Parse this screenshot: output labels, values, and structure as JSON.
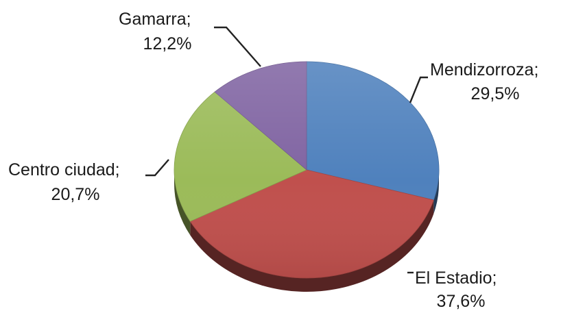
{
  "chart_data": {
    "type": "pie",
    "title": "",
    "series": [
      {
        "categories": [
          "Mendizorroza",
          "El Estadio",
          "Centro ciudad",
          "Gamarra"
        ],
        "values": [
          29.5,
          37.6,
          20.7,
          12.2
        ]
      }
    ],
    "data_labels": [
      {
        "name": "Mendizorroza;",
        "value": "29,5%"
      },
      {
        "name": "El Estadio;",
        "value": "37,6%"
      },
      {
        "name": "Centro ciudad;",
        "value": "20,7%"
      },
      {
        "name": "Gamarra;",
        "value": "12,2%"
      }
    ],
    "colors": [
      "#4f81bd",
      "#c0504d",
      "#9bbb59",
      "#8064a2"
    ],
    "legend": "none",
    "style": "3d-tilted",
    "start": "top",
    "direction": "clockwise"
  }
}
